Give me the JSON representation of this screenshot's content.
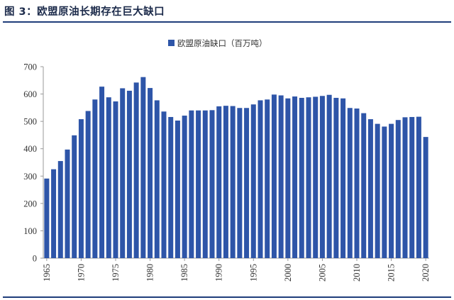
{
  "figure": {
    "title": "图 3：欧盟原油长期存在巨大缺口"
  },
  "colors": {
    "bar": "#2e55a8",
    "axis": "#9a9a9a",
    "rule": "#1f3d7a"
  },
  "chart_data": {
    "type": "bar",
    "title": "",
    "xlabel": "",
    "ylabel": "",
    "legend": {
      "entries": [
        "欧盟原油缺口（百万吨）"
      ],
      "placement": "top-center"
    },
    "grid": false,
    "ylim": [
      0,
      700
    ],
    "yticks": [
      0,
      100,
      200,
      300,
      400,
      500,
      600,
      700
    ],
    "xtick_labels": [
      "1965",
      "1970",
      "1975",
      "1980",
      "1985",
      "1990",
      "1995",
      "2000",
      "2005",
      "2010",
      "2015",
      "2020"
    ],
    "categories": [
      1965,
      1966,
      1967,
      1968,
      1969,
      1970,
      1971,
      1972,
      1973,
      1974,
      1975,
      1976,
      1977,
      1978,
      1979,
      1980,
      1981,
      1982,
      1983,
      1984,
      1985,
      1986,
      1987,
      1988,
      1989,
      1990,
      1991,
      1992,
      1993,
      1994,
      1995,
      1996,
      1997,
      1998,
      1999,
      2000,
      2001,
      2002,
      2003,
      2004,
      2005,
      2006,
      2007,
      2008,
      2009,
      2010,
      2011,
      2012,
      2013,
      2014,
      2015,
      2016,
      2017,
      2018,
      2019,
      2020
    ],
    "series": [
      {
        "name": "欧盟原油缺口（百万吨）",
        "values": [
          291,
          325,
          355,
          397,
          449,
          508,
          538,
          580,
          627,
          588,
          573,
          621,
          612,
          642,
          662,
          622,
          577,
          536,
          516,
          503,
          521,
          540,
          540,
          540,
          541,
          555,
          557,
          556,
          549,
          549,
          562,
          577,
          580,
          598,
          595,
          584,
          591,
          586,
          588,
          590,
          593,
          597,
          586,
          584,
          549,
          547,
          530,
          508,
          491,
          481,
          491,
          505,
          515,
          516,
          517,
          443
        ]
      }
    ]
  }
}
